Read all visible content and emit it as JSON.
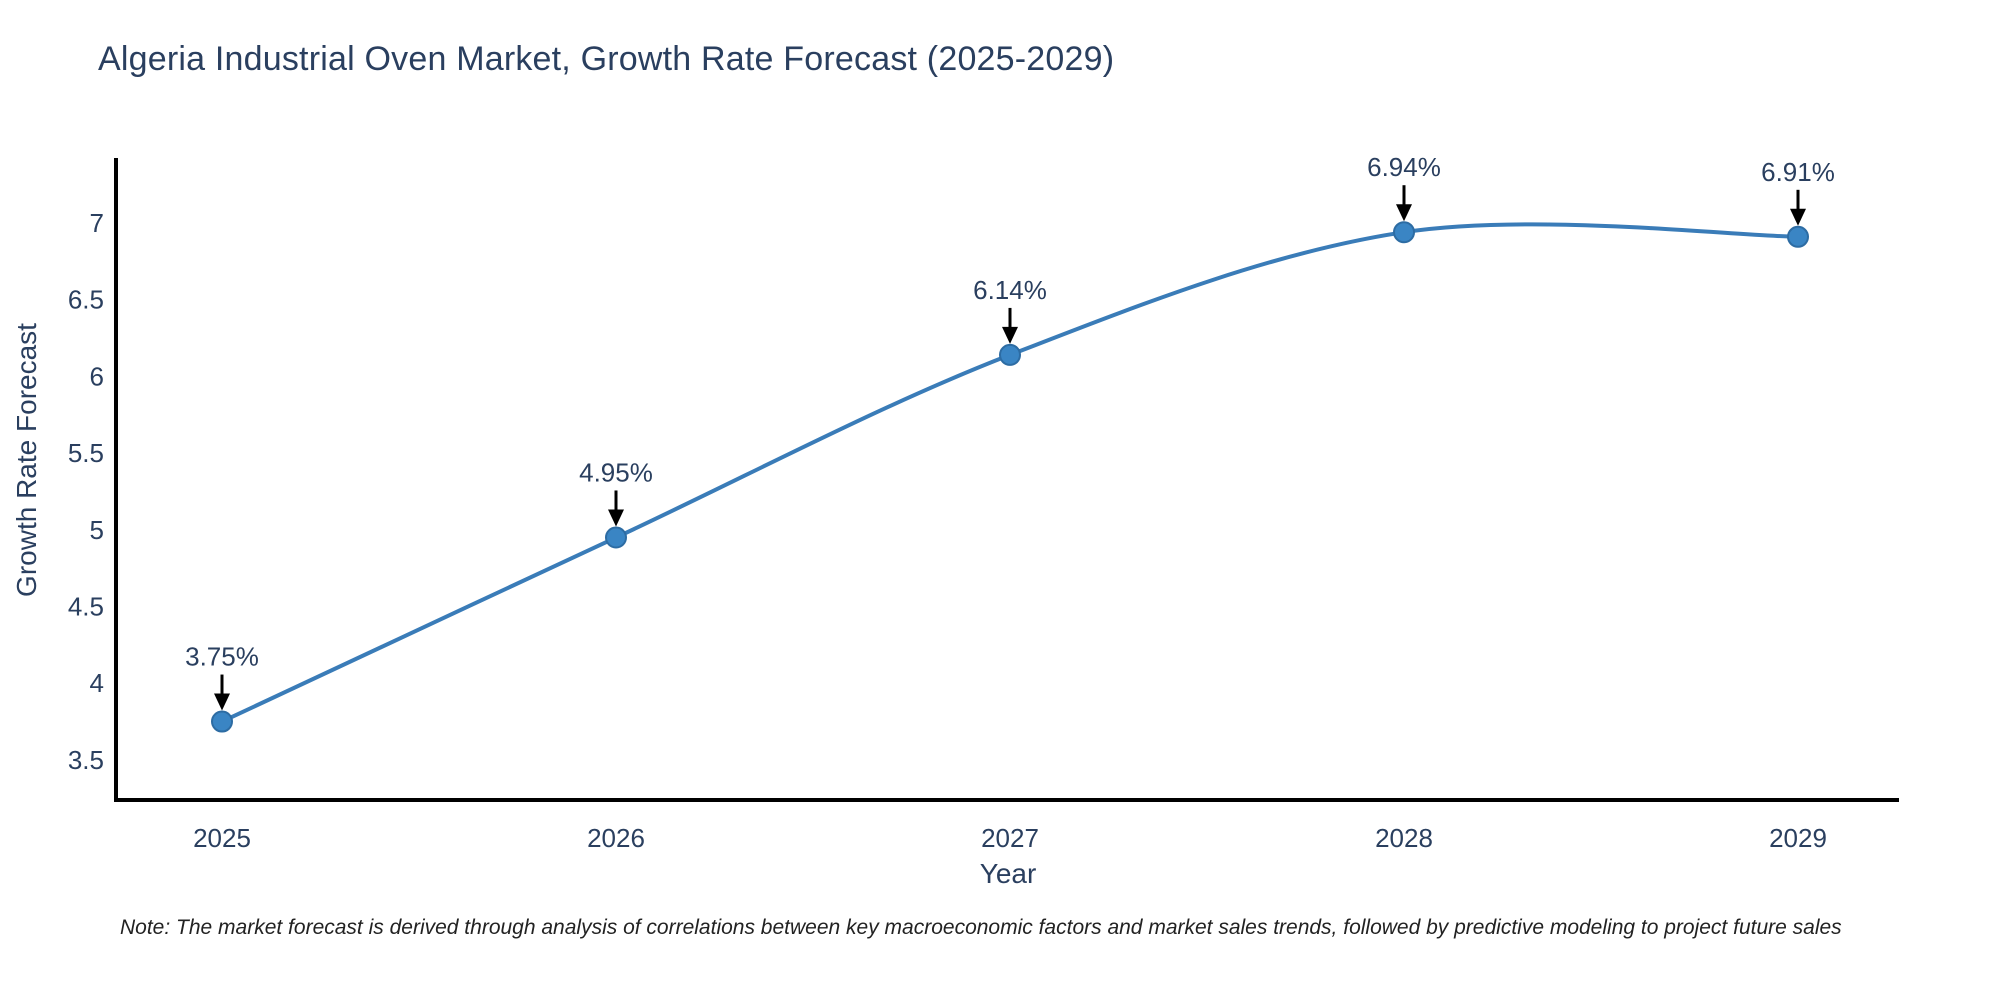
{
  "chart_data": {
    "type": "line",
    "title": "Algeria Industrial Oven Market, Growth Rate Forecast (2025-2029)",
    "xlabel": "Year",
    "ylabel": "Growth Rate Forecast",
    "categories": [
      "2025",
      "2026",
      "2027",
      "2028",
      "2029"
    ],
    "values": [
      3.75,
      4.95,
      6.14,
      6.94,
      6.91
    ],
    "point_labels": [
      "3.75%",
      "4.95%",
      "6.14%",
      "6.94%",
      "6.91%"
    ],
    "yticks": [
      3.5,
      4,
      4.5,
      5,
      5.5,
      6,
      6.5,
      7
    ],
    "ylim": [
      3.24,
      7.42
    ],
    "line_shape": "spline",
    "grid": false,
    "legend_position": "none",
    "annotation_style": "value label with downward black arrow above each point",
    "colors": {
      "line": "#3a7cb8",
      "marker_fill": "#3a85c4",
      "marker_edge": "#2d6ca3",
      "axis": "#000000",
      "label_text": "#2a3f5f",
      "note_text": "#222222",
      "arrow": "#000000",
      "background": "#ffffff"
    }
  },
  "note": "Note: The market forecast is derived through analysis of correlations between key macroeconomic factors and market sales trends, followed by predictive modeling to project future sales"
}
